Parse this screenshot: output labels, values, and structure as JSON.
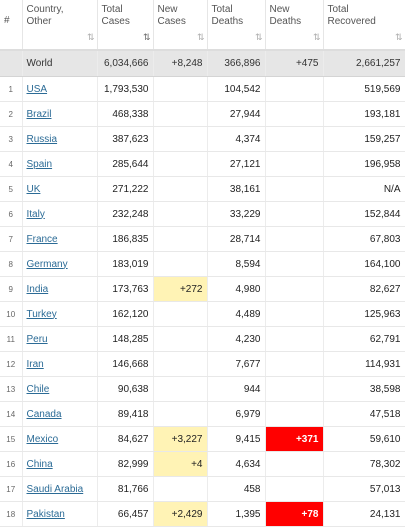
{
  "headers": {
    "num": "#",
    "country": "Country,\nOther",
    "total_cases": "Total\nCases",
    "new_cases": "New\nCases",
    "total_deaths": "Total\nDeaths",
    "new_deaths": "New\nDeaths",
    "total_recovered": "Total\nRecovered"
  },
  "sort_icons": {
    "inactive": "⇅",
    "active": "⇅"
  },
  "colors": {
    "yellow_highlight": "#fff3b5",
    "red_highlight": "#ff0000",
    "link": "#2b6b96",
    "world_row": "#e6e6e6"
  },
  "world": {
    "country": "World",
    "total_cases": "6,034,666",
    "new_cases": "+8,248",
    "total_deaths": "366,896",
    "new_deaths": "+475",
    "total_recovered": "2,661,257"
  },
  "rows": [
    {
      "idx": "1",
      "country": "USA",
      "total_cases": "1,793,530",
      "new_cases": "",
      "total_deaths": "104,542",
      "new_deaths": "",
      "total_recovered": "519,569"
    },
    {
      "idx": "2",
      "country": "Brazil",
      "total_cases": "468,338",
      "new_cases": "",
      "total_deaths": "27,944",
      "new_deaths": "",
      "total_recovered": "193,181"
    },
    {
      "idx": "3",
      "country": "Russia",
      "total_cases": "387,623",
      "new_cases": "",
      "total_deaths": "4,374",
      "new_deaths": "",
      "total_recovered": "159,257"
    },
    {
      "idx": "4",
      "country": "Spain",
      "total_cases": "285,644",
      "new_cases": "",
      "total_deaths": "27,121",
      "new_deaths": "",
      "total_recovered": "196,958"
    },
    {
      "idx": "5",
      "country": "UK",
      "total_cases": "271,222",
      "new_cases": "",
      "total_deaths": "38,161",
      "new_deaths": "",
      "total_recovered": "N/A"
    },
    {
      "idx": "6",
      "country": "Italy",
      "total_cases": "232,248",
      "new_cases": "",
      "total_deaths": "33,229",
      "new_deaths": "",
      "total_recovered": "152,844"
    },
    {
      "idx": "7",
      "country": "France",
      "total_cases": "186,835",
      "new_cases": "",
      "total_deaths": "28,714",
      "new_deaths": "",
      "total_recovered": "67,803"
    },
    {
      "idx": "8",
      "country": "Germany",
      "total_cases": "183,019",
      "new_cases": "",
      "total_deaths": "8,594",
      "new_deaths": "",
      "total_recovered": "164,100"
    },
    {
      "idx": "9",
      "country": "India",
      "total_cases": "173,763",
      "new_cases": "+272",
      "total_deaths": "4,980",
      "new_deaths": "",
      "total_recovered": "82,627"
    },
    {
      "idx": "10",
      "country": "Turkey",
      "total_cases": "162,120",
      "new_cases": "",
      "total_deaths": "4,489",
      "new_deaths": "",
      "total_recovered": "125,963"
    },
    {
      "idx": "11",
      "country": "Peru",
      "total_cases": "148,285",
      "new_cases": "",
      "total_deaths": "4,230",
      "new_deaths": "",
      "total_recovered": "62,791"
    },
    {
      "idx": "12",
      "country": "Iran",
      "total_cases": "146,668",
      "new_cases": "",
      "total_deaths": "7,677",
      "new_deaths": "",
      "total_recovered": "114,931"
    },
    {
      "idx": "13",
      "country": "Chile",
      "total_cases": "90,638",
      "new_cases": "",
      "total_deaths": "944",
      "new_deaths": "",
      "total_recovered": "38,598"
    },
    {
      "idx": "14",
      "country": "Canada",
      "total_cases": "89,418",
      "new_cases": "",
      "total_deaths": "6,979",
      "new_deaths": "",
      "total_recovered": "47,518"
    },
    {
      "idx": "15",
      "country": "Mexico",
      "total_cases": "84,627",
      "new_cases": "+3,227",
      "total_deaths": "9,415",
      "new_deaths": "+371",
      "total_recovered": "59,610"
    },
    {
      "idx": "16",
      "country": "China",
      "total_cases": "82,999",
      "new_cases": "+4",
      "total_deaths": "4,634",
      "new_deaths": "",
      "total_recovered": "78,302"
    },
    {
      "idx": "17",
      "country": "Saudi Arabia",
      "total_cases": "81,766",
      "new_cases": "",
      "total_deaths": "458",
      "new_deaths": "",
      "total_recovered": "57,013"
    },
    {
      "idx": "18",
      "country": "Pakistan",
      "total_cases": "66,457",
      "new_cases": "+2,429",
      "total_deaths": "1,395",
      "new_deaths": "+78",
      "total_recovered": "24,131"
    }
  ]
}
